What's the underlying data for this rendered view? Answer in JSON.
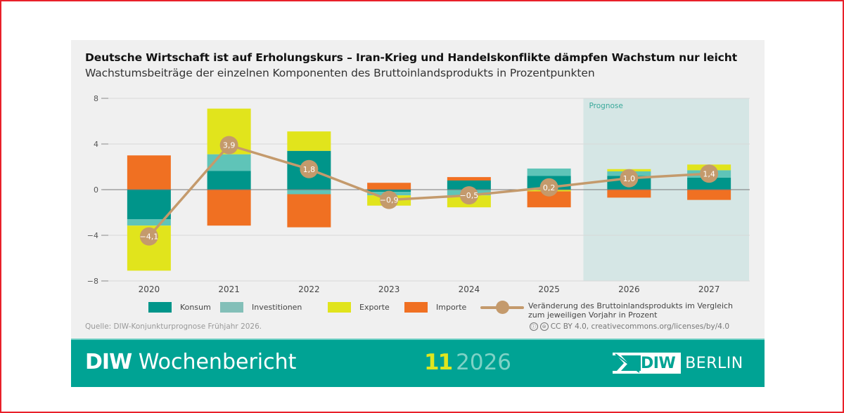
{
  "frame_color": "#e8202a",
  "header": {
    "title": "Deutsche Wirtschaft ist auf Erholungskurs – Iran-Krieg und Handelskonflikte dämpfen Wachstum nur leicht",
    "subtitle": "Wachstumsbeiträge der einzelnen Komponenten des Bruttoinlandsprodukts in Prozentpunkten"
  },
  "chart_data": {
    "type": "bar",
    "stacked": true,
    "title": "Deutsche Wirtschaft ist auf Erholungskurs – Iran-Krieg und Handelskonflikte dämpfen Wachstum nur leicht",
    "subtitle": "Wachstumsbeiträge der einzelnen Komponenten des Bruttoinlandsprodukts in Prozentpunkten",
    "xlabel": "",
    "ylabel": "",
    "categories": [
      "2020",
      "2021",
      "2022",
      "2023",
      "2024",
      "2025",
      "2026",
      "2027"
    ],
    "ylim": [
      -8,
      8
    ],
    "yticks": [
      8,
      4,
      0,
      -4,
      -8
    ],
    "ytick_labels": [
      "8",
      "4",
      "0",
      "−4",
      "−8"
    ],
    "grid": true,
    "forecast": {
      "label": "Prognose",
      "from": "2026",
      "to": "2027",
      "color": "#d5e6e5"
    },
    "series": [
      {
        "name": "Konsum",
        "color": "#00958a",
        "values": [
          -2.6,
          1.65,
          3.4,
          -0.2,
          0.8,
          1.2,
          1.2,
          1.05
        ]
      },
      {
        "name": "Investitionen",
        "color": "#5fc4b8",
        "values": [
          -0.55,
          1.45,
          -0.4,
          -0.3,
          -0.5,
          0.65,
          0.4,
          0.65
        ]
      },
      {
        "name": "Exporte",
        "color": "#e1e41c",
        "values": [
          -3.95,
          4.0,
          1.7,
          -0.9,
          -1.05,
          -0.15,
          0.2,
          0.5
        ]
      },
      {
        "name": "Importe",
        "color": "#f07022",
        "values": [
          3.0,
          -3.15,
          -2.9,
          0.6,
          0.3,
          -1.4,
          -0.7,
          -0.9
        ]
      }
    ],
    "line_series": {
      "name": "Veränderung des Bruttoinlandsprodukts im Vergleich zum jeweiligen Vorjahr in Prozent",
      "color": "#c49a6c",
      "values": [
        -4.1,
        3.9,
        1.8,
        -0.9,
        -0.5,
        0.2,
        1.0,
        1.4
      ],
      "labels": [
        "−4,1",
        "3,9",
        "1,8",
        "−0,9",
        "−0,5",
        "0,2",
        "1,0",
        "1,4"
      ]
    },
    "legend_position": "bottom"
  },
  "legend": {
    "items": [
      {
        "label": "Konsum",
        "color": "#00958a"
      },
      {
        "label": "Investitionen",
        "color": "#83bfb8"
      },
      {
        "label": "Exporte",
        "color": "#e1e41c"
      },
      {
        "label": "Importe",
        "color": "#f07022"
      }
    ],
    "line_label_1": "Veränderung des Bruttoinlandsprodukts im Vergleich",
    "line_label_2": "zum jeweiligen Vorjahr in Prozent"
  },
  "footer": {
    "source": "Quelle: DIW-Konjunkturprognose Frühjahr 2026.",
    "license": "CC BY 4.0, creativecommons.org/licenses/by/4.0",
    "cc_icon_1": "ⓘ",
    "cc_icon_2": "⊜"
  },
  "banner": {
    "brand_bold": "DIW",
    "brand_rest": "Wochenbericht",
    "issue_number": "11",
    "issue_year": "2026",
    "logo_diw": "DIW",
    "logo_berlin": "BERLIN",
    "color": "#00a394"
  }
}
